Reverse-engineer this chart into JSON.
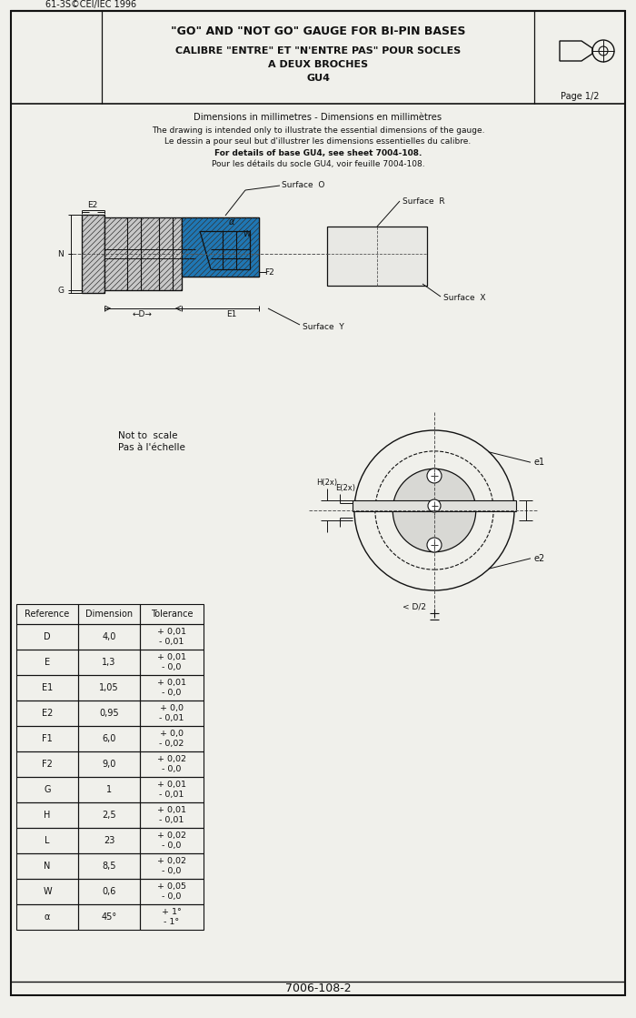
{
  "page_bg": "#f0f0eb",
  "border_color": "#111111",
  "title_line1": "\"GO\" AND \"NOT GO\" GAUGE FOR BI-PIN BASES",
  "title_line2": "CALIBRE \"ENTRE\" ET \"N'ENTRE PAS\" POUR SOCLES",
  "title_line3": "A DEUX BROCHES",
  "title_line4": "GU4",
  "std_ref": "61-3S©CEI/IEC 1996",
  "page_ref": "Page 1/2",
  "doc_num": "7006-108-2",
  "desc_line1": "Dimensions in millimetres - Dimensions en millimètres",
  "desc_line2": "The drawing is intended only to illustrate the essential dimensions of the gauge.",
  "desc_line3": "Le dessin a pour seul but d'illustrer les dimensions essentielles du calibre.",
  "desc_line4": "For details of base GU4, see sheet 7004-108.",
  "desc_line5": "Pour les détails du socle GU4, voir feuille 7004-108.",
  "not_to_scale": "Not to scale\nPas à l'échelle",
  "table_headers": [
    "Reference",
    "Dimension",
    "Tolerance"
  ],
  "table_data": [
    [
      "D",
      "4,0",
      "+ 0,01\n- 0,01"
    ],
    [
      "E",
      "1,3",
      "+ 0,01\n- 0,0"
    ],
    [
      "E1",
      "1,05",
      "+ 0,01\n- 0,0"
    ],
    [
      "E2",
      "0,95",
      "+ 0,0\n- 0,01"
    ],
    [
      "F1",
      "6,0",
      "+ 0,0\n- 0,02"
    ],
    [
      "F2",
      "9,0",
      "+ 0,02\n- 0,0"
    ],
    [
      "G",
      "1",
      "+ 0,01\n- 0,01"
    ],
    [
      "H",
      "2,5",
      "+ 0,01\n- 0,01"
    ],
    [
      "L",
      "23",
      "+ 0,02\n- 0,0"
    ],
    [
      "N",
      "8,5",
      "+ 0,02\n- 0,0"
    ],
    [
      "W",
      "0,6",
      "+ 0,05\n- 0,0"
    ],
    [
      "α",
      "45°",
      "+ 1°\n- 1°"
    ]
  ]
}
